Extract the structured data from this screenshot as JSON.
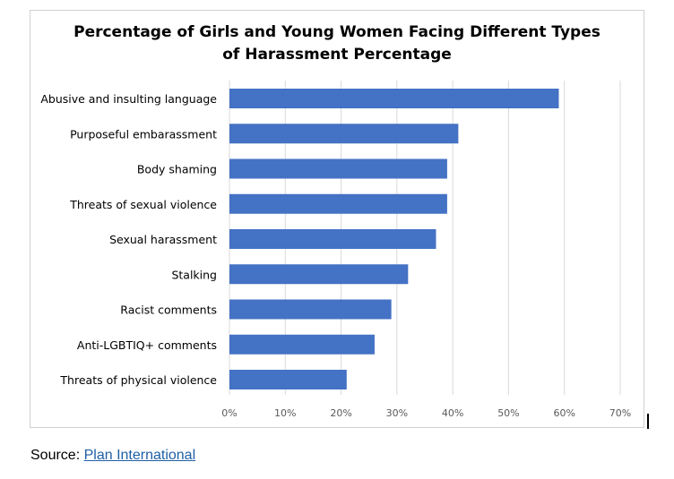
{
  "chart_data": {
    "type": "bar",
    "orientation": "horizontal",
    "title_lines": [
      "Percentage of Girls and Young Women Facing Different Types",
      "of Harassment Percentage"
    ],
    "categories": [
      "Abusive and insulting language",
      "Purposeful embarassment",
      "Body shaming",
      "Threats of sexual violence",
      "Sexual harassment",
      "Stalking",
      "Racist comments",
      "Anti-LGBTIQ+ comments",
      "Threats of physical violence"
    ],
    "values": [
      59,
      41,
      39,
      39,
      37,
      32,
      29,
      26,
      21
    ],
    "xlim": [
      0,
      70
    ],
    "xticks": [
      "0%",
      "10%",
      "20%",
      "30%",
      "40%",
      "50%",
      "60%",
      "70%"
    ],
    "grid": true,
    "bar_color": "#4472c4",
    "grid_color": "#d9d9d9"
  },
  "source": {
    "label": "Source: ",
    "link_text": "Plan International"
  }
}
